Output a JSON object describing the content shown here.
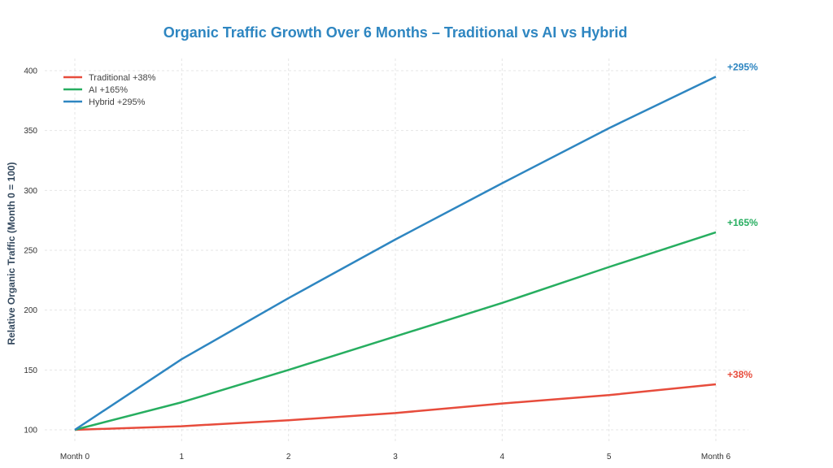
{
  "chart_data": {
    "type": "line",
    "title": "Organic Traffic Growth Over 6 Months – Traditional vs AI vs Hybrid",
    "xlabel": "",
    "ylabel": "Relative Organic Traffic (Month 0 = 100)",
    "x": [
      0,
      1,
      2,
      3,
      4,
      5,
      6
    ],
    "x_tick_labels": [
      "Month 0",
      "1",
      "2",
      "3",
      "4",
      "5",
      "Month 6"
    ],
    "y_ticks": [
      100,
      150,
      200,
      250,
      300,
      350,
      400
    ],
    "ylim": [
      93,
      410
    ],
    "grid": true,
    "legend_position": "top-left",
    "series": [
      {
        "name": "Traditional +38%",
        "color": "#e74c3c",
        "end_label": "+38%",
        "values": [
          100,
          103,
          108,
          114,
          122,
          129,
          138
        ]
      },
      {
        "name": "AI +165%",
        "color": "#27ae60",
        "end_label": "+165%",
        "values": [
          100,
          123,
          150,
          178,
          206,
          236,
          265
        ]
      },
      {
        "name": "Hybrid +295%",
        "color": "#2e86c1",
        "end_label": "+295%",
        "values": [
          100,
          159,
          210,
          259,
          306,
          352,
          395
        ]
      }
    ]
  }
}
